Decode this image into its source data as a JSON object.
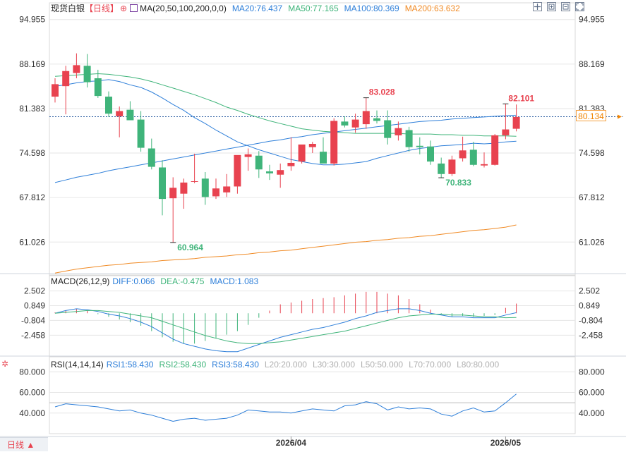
{
  "header": {
    "symbol": "现货白银",
    "period": "【日线】",
    "ma_label": "MA(20,50,100,200,0,0)",
    "ma20": "MA20:76.437",
    "ma50": "MA50:77.165",
    "ma100": "MA100:80.369",
    "ma200": "MA200:63.632"
  },
  "macd_header": {
    "label": "MACD(26,12,9)",
    "diff": "DIFF:0.066",
    "dea": "DEA:-0.475",
    "macd": "MACD:1.083"
  },
  "rsi_header": {
    "label": "RSI(14,14,14)",
    "rsi1": "RSI1:58.430",
    "rsi2": "RSI2:58.430",
    "rsi3": "RSI3:58.430",
    "l20": "L20:20.000",
    "l30": "L30:30.000",
    "l50": "L50:50.000",
    "l70": "L70:70.000",
    "l80": "L80:80.000"
  },
  "footer": {
    "period_tab": "日线 ▲"
  },
  "current_price": "80.134",
  "colors": {
    "up": "#e8424f",
    "down": "#3fb47a",
    "ma20": "#2e7fd9",
    "ma50": "#3fb47a",
    "ma100": "#2e7fd9",
    "ma200": "#f08a24",
    "price_line": "#2e5fa3",
    "grid": "#e6e6e6"
  },
  "chart_data": [
    {
      "type": "candlestick",
      "panel": "price",
      "yticks": [
        "94.955",
        "88.169",
        "81.383",
        "74.598",
        "67.812",
        "61.026"
      ],
      "ylim": [
        56.0,
        96.0
      ],
      "xticks": [
        {
          "index": 22,
          "label": "2026/04"
        },
        {
          "index": 42,
          "label": "2026/05"
        }
      ],
      "candles": [
        {
          "o": 83.2,
          "h": 86.0,
          "l": 82.3,
          "c": 85.1
        },
        {
          "o": 84.8,
          "h": 87.9,
          "l": 80.5,
          "c": 87.1
        },
        {
          "o": 86.8,
          "h": 89.8,
          "l": 86.0,
          "c": 88.0
        },
        {
          "o": 87.9,
          "h": 89.7,
          "l": 84.6,
          "c": 85.4
        },
        {
          "o": 86.0,
          "h": 87.3,
          "l": 83.0,
          "c": 83.3
        },
        {
          "o": 83.2,
          "h": 84.0,
          "l": 80.1,
          "c": 80.6
        },
        {
          "o": 80.2,
          "h": 81.7,
          "l": 77.0,
          "c": 81.0
        },
        {
          "o": 81.2,
          "h": 82.5,
          "l": 79.8,
          "c": 79.6
        },
        {
          "o": 79.7,
          "h": 81.0,
          "l": 74.8,
          "c": 75.4
        },
        {
          "o": 75.3,
          "h": 76.8,
          "l": 72.1,
          "c": 72.5
        },
        {
          "o": 72.4,
          "h": 73.5,
          "l": 65.1,
          "c": 67.6
        },
        {
          "o": 67.7,
          "h": 70.9,
          "l": 60.96,
          "c": 69.3
        },
        {
          "o": 68.4,
          "h": 70.7,
          "l": 66.1,
          "c": 70.1
        },
        {
          "o": 70.2,
          "h": 74.5,
          "l": 70.0,
          "c": 70.3
        },
        {
          "o": 70.7,
          "h": 71.7,
          "l": 66.7,
          "c": 67.9
        },
        {
          "o": 68.0,
          "h": 70.7,
          "l": 67.6,
          "c": 69.2
        },
        {
          "o": 68.6,
          "h": 71.4,
          "l": 67.9,
          "c": 69.5
        },
        {
          "o": 69.5,
          "h": 73.9,
          "l": 68.4,
          "c": 74.3
        },
        {
          "o": 74.0,
          "h": 75.3,
          "l": 71.9,
          "c": 74.4
        },
        {
          "o": 74.2,
          "h": 74.9,
          "l": 70.8,
          "c": 72.1
        },
        {
          "o": 71.8,
          "h": 72.8,
          "l": 70.5,
          "c": 71.5
        },
        {
          "o": 71.3,
          "h": 73.0,
          "l": 69.3,
          "c": 72.0
        },
        {
          "o": 72.6,
          "h": 77.0,
          "l": 71.9,
          "c": 73.1
        },
        {
          "o": 73.3,
          "h": 75.6,
          "l": 73.0,
          "c": 75.9
        },
        {
          "o": 75.5,
          "h": 76.3,
          "l": 74.6,
          "c": 76.0
        },
        {
          "o": 74.8,
          "h": 77.0,
          "l": 73.1,
          "c": 73.0
        },
        {
          "o": 73.0,
          "h": 79.9,
          "l": 72.7,
          "c": 79.5
        },
        {
          "o": 79.4,
          "h": 80.2,
          "l": 78.5,
          "c": 78.8
        },
        {
          "o": 78.5,
          "h": 80.6,
          "l": 77.7,
          "c": 79.7
        },
        {
          "o": 79.0,
          "h": 83.03,
          "l": 78.3,
          "c": 81.0
        },
        {
          "o": 79.9,
          "h": 81.1,
          "l": 79.1,
          "c": 79.5
        },
        {
          "o": 79.6,
          "h": 81.1,
          "l": 75.9,
          "c": 76.9
        },
        {
          "o": 77.3,
          "h": 79.4,
          "l": 76.5,
          "c": 78.4
        },
        {
          "o": 78.1,
          "h": 78.6,
          "l": 74.8,
          "c": 75.5
        },
        {
          "o": 75.7,
          "h": 77.0,
          "l": 74.4,
          "c": 75.5
        },
        {
          "o": 75.6,
          "h": 76.5,
          "l": 72.8,
          "c": 73.3
        },
        {
          "o": 73.0,
          "h": 73.9,
          "l": 70.83,
          "c": 71.4
        },
        {
          "o": 71.4,
          "h": 74.2,
          "l": 71.1,
          "c": 73.6
        },
        {
          "o": 73.8,
          "h": 77.1,
          "l": 73.3,
          "c": 75.0
        },
        {
          "o": 75.1,
          "h": 76.3,
          "l": 72.6,
          "c": 72.8
        },
        {
          "o": 72.7,
          "h": 74.7,
          "l": 72.4,
          "c": 72.9
        },
        {
          "o": 72.8,
          "h": 77.5,
          "l": 72.7,
          "c": 77.3
        },
        {
          "o": 77.3,
          "h": 82.1,
          "l": 76.7,
          "c": 78.2
        },
        {
          "o": 78.3,
          "h": 82.0,
          "l": 77.9,
          "c": 80.1
        }
      ],
      "annotations": [
        {
          "index": 29,
          "value": "83.028",
          "pos": "above"
        },
        {
          "index": 11,
          "value": "60.964",
          "pos": "below"
        },
        {
          "index": 36,
          "value": "70.833",
          "pos": "below"
        },
        {
          "index": 42,
          "value": "82.101",
          "pos": "above"
        }
      ],
      "moving_averages": [
        {
          "name": "MA20",
          "values": [
            84.8,
            85.0,
            85.3,
            85.5,
            85.6,
            85.8,
            85.5,
            85.0,
            84.6,
            83.9,
            83.0,
            82.0,
            81.1,
            80.0,
            79.1,
            78.1,
            77.2,
            76.3,
            75.7,
            75.1,
            74.6,
            74.1,
            73.6,
            73.3,
            73.0,
            72.8,
            72.8,
            72.9,
            73.1,
            73.3,
            73.8,
            74.2,
            74.6,
            75.0,
            75.3,
            75.5,
            75.7,
            75.8,
            75.9,
            76.1,
            76.0,
            76.1,
            76.3,
            76.4
          ]
        },
        {
          "name": "MA50",
          "values": [
            86.3,
            86.4,
            86.5,
            86.6,
            86.7,
            86.6,
            86.4,
            86.2,
            85.9,
            85.5,
            85.0,
            84.5,
            84.0,
            83.5,
            82.9,
            82.3,
            81.6,
            81.1,
            80.5,
            80.0,
            79.5,
            79.1,
            78.7,
            78.3,
            78.1,
            77.9,
            77.8,
            77.7,
            77.6,
            77.6,
            77.6,
            77.6,
            77.6,
            77.5,
            77.5,
            77.5,
            77.4,
            77.4,
            77.3,
            77.3,
            77.2,
            77.2,
            77.2,
            77.165
          ]
        },
        {
          "name": "MA100",
          "values": [
            70.1,
            70.5,
            70.9,
            71.2,
            71.5,
            71.9,
            72.2,
            72.5,
            72.8,
            73.1,
            73.4,
            73.7,
            74.0,
            74.3,
            74.6,
            74.9,
            75.2,
            75.5,
            75.8,
            76.1,
            76.4,
            76.6,
            76.9,
            77.1,
            77.4,
            77.6,
            77.8,
            78.0,
            78.2,
            78.4,
            78.6,
            78.8,
            79.0,
            79.2,
            79.4,
            79.5,
            79.6,
            79.8,
            79.9,
            80.0,
            80.1,
            80.2,
            80.3,
            80.369
          ]
        },
        {
          "name": "MA200",
          "values": [
            56.3,
            56.6,
            56.9,
            57.1,
            57.3,
            57.5,
            57.6,
            57.8,
            57.9,
            58.0,
            58.2,
            58.3,
            58.4,
            58.5,
            58.7,
            58.8,
            58.9,
            59.1,
            59.2,
            59.4,
            59.5,
            59.7,
            59.8,
            60.0,
            60.2,
            60.4,
            60.6,
            60.8,
            61.0,
            61.1,
            61.3,
            61.4,
            61.6,
            61.7,
            61.9,
            62.0,
            62.2,
            62.4,
            62.6,
            62.8,
            62.9,
            63.1,
            63.3,
            63.632
          ]
        }
      ],
      "last_price_line": 80.134
    },
    {
      "type": "macd",
      "panel": "macd",
      "yticks": [
        "2.502",
        "0.849",
        "-0.804",
        "-2.458"
      ],
      "ylim": [
        -4.8,
        3.1
      ],
      "diff": [
        0.0,
        0.3,
        0.5,
        0.4,
        0.2,
        -0.1,
        -0.3,
        -0.6,
        -1.0,
        -1.5,
        -2.2,
        -2.9,
        -3.4,
        -3.7,
        -4.0,
        -4.2,
        -4.3,
        -4.3,
        -3.9,
        -3.5,
        -3.1,
        -2.7,
        -2.4,
        -2.1,
        -1.8,
        -1.6,
        -1.3,
        -1.0,
        -0.6,
        -0.3,
        0.1,
        0.3,
        0.5,
        0.5,
        0.3,
        0.0,
        -0.2,
        -0.4,
        -0.4,
        -0.5,
        -0.5,
        -0.5,
        -0.2,
        0.066
      ],
      "dea": [
        0.0,
        0.1,
        0.2,
        0.3,
        0.3,
        0.2,
        0.1,
        -0.1,
        -0.3,
        -0.5,
        -0.9,
        -1.3,
        -1.7,
        -2.1,
        -2.5,
        -2.8,
        -3.1,
        -3.3,
        -3.4,
        -3.4,
        -3.3,
        -3.2,
        -3.0,
        -2.8,
        -2.6,
        -2.4,
        -2.2,
        -2.0,
        -1.7,
        -1.4,
        -1.1,
        -0.8,
        -0.5,
        -0.3,
        -0.2,
        -0.1,
        -0.1,
        -0.2,
        -0.2,
        -0.3,
        -0.4,
        -0.4,
        -0.5,
        -0.475
      ],
      "macd": [
        0.1,
        0.3,
        0.5,
        0.3,
        -0.1,
        -0.4,
        -0.7,
        -1.0,
        -1.4,
        -2.0,
        -2.7,
        -3.2,
        -3.4,
        -3.4,
        -3.1,
        -2.8,
        -2.4,
        -2.0,
        -1.3,
        -0.5,
        0.3,
        1.0,
        1.2,
        1.4,
        1.6,
        1.7,
        1.8,
        2.0,
        2.2,
        2.4,
        2.4,
        2.2,
        2.0,
        1.6,
        1.0,
        0.4,
        -0.1,
        -0.4,
        -0.3,
        -0.4,
        -0.3,
        -0.2,
        0.6,
        1.083
      ]
    },
    {
      "type": "line",
      "panel": "rsi",
      "yticks": [
        "80.000",
        "60.000",
        "40.000"
      ],
      "ylim": [
        20,
        85
      ],
      "rsi": [
        46,
        49,
        48,
        47,
        46,
        44,
        42,
        43,
        40,
        38,
        35,
        32,
        34,
        35,
        33,
        34,
        35,
        38,
        43,
        42,
        41,
        41,
        40,
        42,
        44,
        43,
        42,
        47,
        48,
        51,
        49,
        43,
        46,
        44,
        45,
        44,
        39,
        37,
        42,
        45,
        41,
        42,
        50,
        58.43
      ]
    }
  ]
}
